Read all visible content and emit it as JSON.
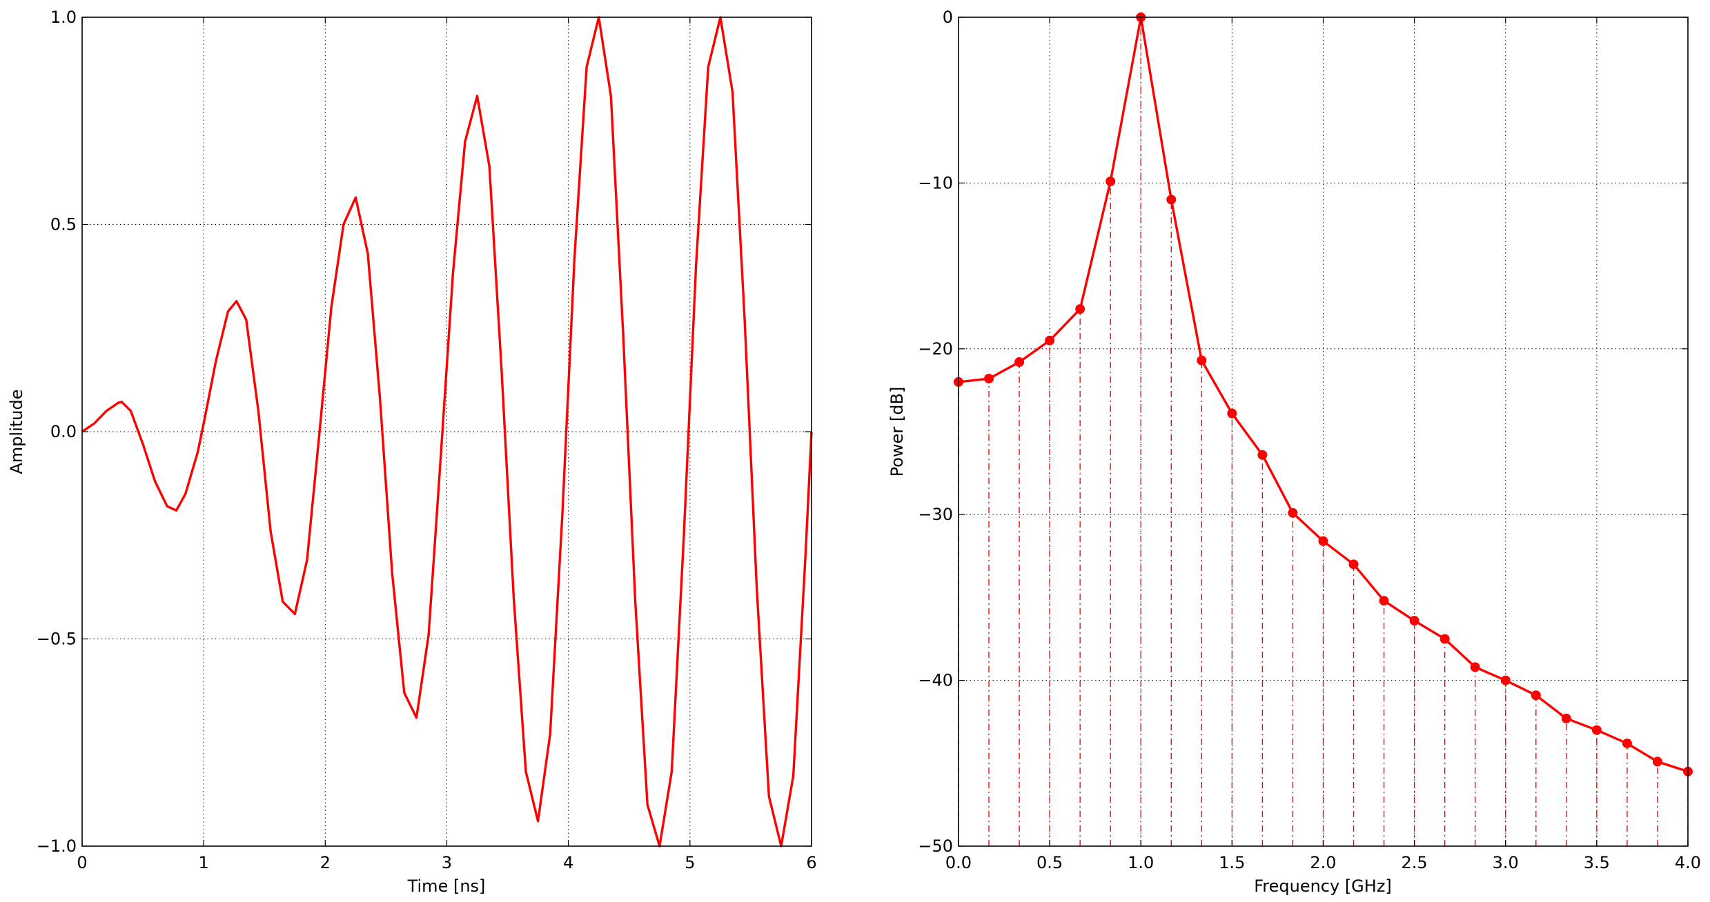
{
  "chart_data": [
    {
      "type": "line",
      "xlabel": "Time [ns]",
      "ylabel": "Amplitude",
      "xlim": [
        0,
        6
      ],
      "ylim": [
        -1.0,
        1.0
      ],
      "xticks": [
        0,
        1,
        2,
        3,
        4,
        5,
        6
      ],
      "xtick_labels": [
        "0",
        "1",
        "2",
        "3",
        "4",
        "5",
        "6"
      ],
      "yticks": [
        -1.0,
        -0.5,
        0.0,
        0.5,
        1.0
      ],
      "ytick_labels": [
        "−1.0",
        "−0.5",
        "0.0",
        "0.5",
        "1.0"
      ],
      "grid": true,
      "series": [
        {
          "color": "#ff0000",
          "marker": "none",
          "x": [
            0.0,
            0.1,
            0.2,
            0.3,
            0.325,
            0.4,
            0.5,
            0.6,
            0.7,
            0.775,
            0.85,
            0.95,
            1.0,
            1.1,
            1.2,
            1.27,
            1.35,
            1.45,
            1.55,
            1.65,
            1.75,
            1.85,
            1.95,
            2.05,
            2.15,
            2.25,
            2.35,
            2.45,
            2.55,
            2.65,
            2.75,
            2.85,
            2.95,
            3.05,
            3.15,
            3.25,
            3.35,
            3.45,
            3.55,
            3.65,
            3.75,
            3.85,
            3.95,
            4.05,
            4.15,
            4.25,
            4.35,
            4.45,
            4.55,
            4.65,
            4.75,
            4.85,
            4.95,
            5.05,
            5.15,
            5.25,
            5.35,
            5.45,
            5.55,
            5.65,
            5.75,
            5.85,
            5.95,
            6.0
          ],
          "y": [
            0.0,
            0.02,
            0.05,
            0.07,
            0.072,
            0.05,
            -0.03,
            -0.12,
            -0.18,
            -0.19,
            -0.15,
            -0.05,
            0.02,
            0.17,
            0.29,
            0.315,
            0.27,
            0.05,
            -0.24,
            -0.41,
            -0.44,
            -0.31,
            -0.01,
            0.3,
            0.5,
            0.565,
            0.43,
            0.08,
            -0.34,
            -0.63,
            -0.69,
            -0.49,
            -0.06,
            0.38,
            0.7,
            0.81,
            0.64,
            0.15,
            -0.4,
            -0.82,
            -0.94,
            -0.73,
            -0.2,
            0.42,
            0.88,
            1.0,
            0.81,
            0.24,
            -0.41,
            -0.9,
            -1.0,
            -0.82,
            -0.25,
            0.4,
            0.88,
            1.0,
            0.82,
            0.27,
            -0.38,
            -0.88,
            -1.0,
            -0.83,
            -0.3,
            0.0
          ]
        }
      ]
    },
    {
      "type": "line",
      "xlabel": "Frequency [GHz]",
      "ylabel": "Power [dB]",
      "xlim": [
        0.0,
        4.0
      ],
      "ylim": [
        -50,
        0
      ],
      "xticks": [
        0.0,
        0.5,
        1.0,
        1.5,
        2.0,
        2.5,
        3.0,
        3.5,
        4.0
      ],
      "xtick_labels": [
        "0.0",
        "0.5",
        "1.0",
        "1.5",
        "2.0",
        "2.5",
        "3.0",
        "3.5",
        "4.0"
      ],
      "yticks": [
        -50,
        -40,
        -30,
        -20,
        -10,
        0
      ],
      "ytick_labels": [
        "−50",
        "−40",
        "−30",
        "−20",
        "−10",
        "0"
      ],
      "grid": true,
      "stems": true,
      "stem_style": "dash-dot",
      "series": [
        {
          "color": "#ff0000",
          "marker": "circle",
          "x": [
            0.0,
            0.1667,
            0.3333,
            0.5,
            0.6667,
            0.8333,
            1.0,
            1.1667,
            1.3333,
            1.5,
            1.6667,
            1.8333,
            2.0,
            2.1667,
            2.3333,
            2.5,
            2.6667,
            2.8333,
            3.0,
            3.1667,
            3.3333,
            3.5,
            3.6667,
            3.8333,
            4.0
          ],
          "y": [
            -22.0,
            -21.8,
            -20.8,
            -19.5,
            -17.6,
            -9.9,
            0.0,
            -11.0,
            -20.7,
            -23.9,
            -26.4,
            -29.9,
            -31.6,
            -33.0,
            -35.2,
            -36.4,
            -37.5,
            -39.2,
            -40.0,
            -40.9,
            -42.3,
            -43.0,
            -43.8,
            -44.9,
            -45.5
          ]
        }
      ]
    }
  ]
}
